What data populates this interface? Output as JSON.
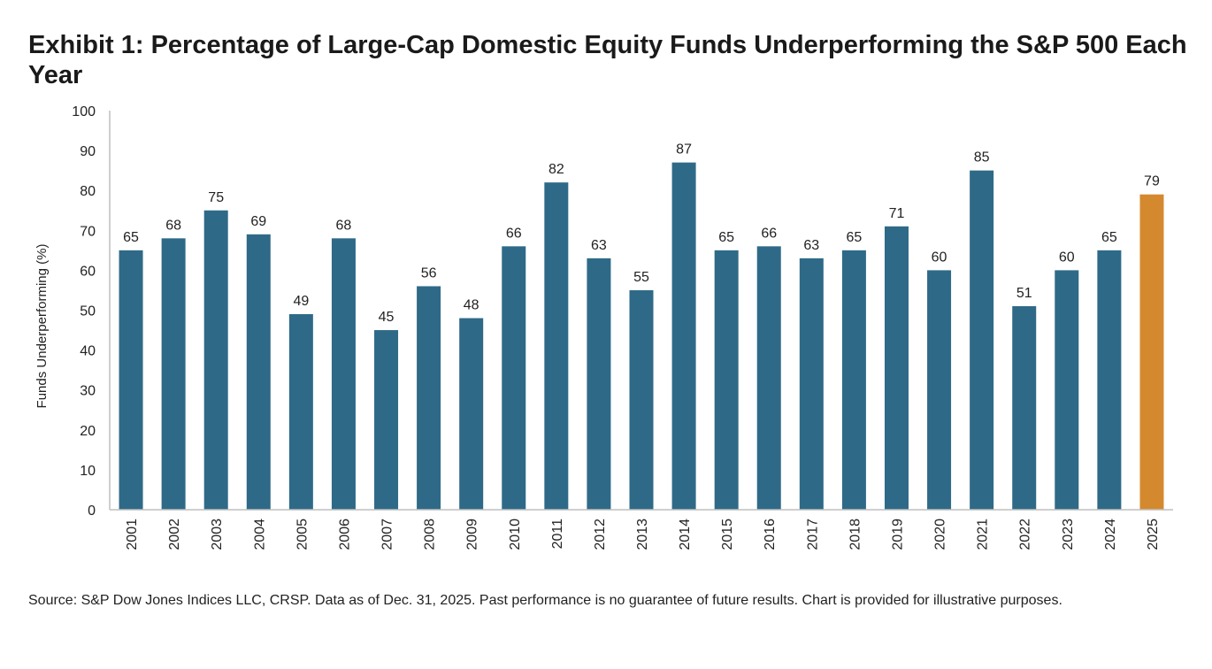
{
  "chart_data": {
    "type": "bar",
    "title": "Exhibit 1: Percentage of Large-Cap Domestic Equity Funds Underperforming the S&P 500 Each Year",
    "xlabel": "",
    "ylabel": "Funds Underperforming (%)",
    "ylim": [
      0,
      100
    ],
    "yticks": [
      0,
      10,
      20,
      30,
      40,
      50,
      60,
      70,
      80,
      90,
      100
    ],
    "grid": false,
    "legend": "none",
    "categories": [
      "2001",
      "2002",
      "2003",
      "2004",
      "2005",
      "2006",
      "2007",
      "2008",
      "2009",
      "2010",
      "2011",
      "2012",
      "2013",
      "2014",
      "2015",
      "2016",
      "2017",
      "2018",
      "2019",
      "2020",
      "2021",
      "2022",
      "2023",
      "2024",
      "2025"
    ],
    "values": [
      65,
      68,
      75,
      69,
      49,
      68,
      45,
      56,
      48,
      66,
      82,
      63,
      55,
      87,
      65,
      66,
      63,
      65,
      71,
      60,
      85,
      51,
      60,
      65,
      79
    ],
    "colors": {
      "bar": "#2e6a87",
      "highlight": "#d4892f",
      "axis": "#bfbfbf",
      "text": "#222222"
    },
    "highlight_category": "2025"
  },
  "source_note": "Source: S&P Dow Jones Indices LLC, CRSP.  Data as of Dec. 31, 2025.  Past performance is no guarantee of future results.  Chart is provided for illustrative purposes."
}
